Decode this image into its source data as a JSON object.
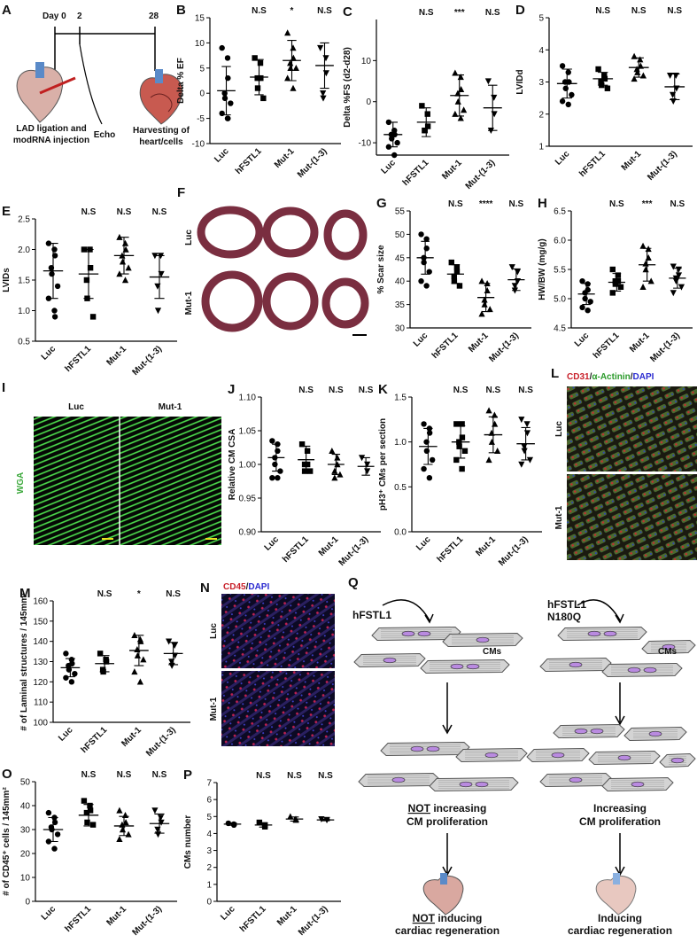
{
  "panel_a": {
    "label": "A",
    "timeline": [
      "Day 0",
      "2",
      "28"
    ],
    "captions": [
      [
        "LAD ligation and",
        "modRNA injection"
      ],
      [
        "Echo"
      ],
      [
        "Harvesting of",
        "heart/cells"
      ]
    ]
  },
  "panel_f": {
    "label": "F",
    "rows": [
      "Luc",
      "Mut-1"
    ]
  },
  "panel_i": {
    "label": "I",
    "stain": "WGA",
    "stain_color": "#3aa83a",
    "columns": [
      "Luc",
      "Mut-1"
    ]
  },
  "panel_l": {
    "label": "L",
    "stain": [
      "CD31",
      "/",
      "α-Actinin",
      "/",
      "DAPI"
    ],
    "stain_colors": [
      "#c8202a",
      "#222222",
      "#2a9a2a",
      "#222222",
      "#2a2ad0"
    ],
    "rows": [
      "Luc",
      "Mut-1"
    ]
  },
  "panel_n": {
    "label": "N",
    "stain": [
      "CD45",
      "/",
      "DAPI"
    ],
    "stain_colors": [
      "#c8202a",
      "#222222",
      "#2a2ad0"
    ],
    "rows": [
      "Luc",
      "Mut-1"
    ]
  },
  "panel_q": {
    "label": "Q",
    "left": {
      "treatment": [
        "hFSTL1"
      ],
      "cells": "CMs",
      "proliferation": [
        [
          "NOT",
          " increasing"
        ],
        [
          "CM proliferation"
        ]
      ],
      "regeneration": [
        [
          "NOT",
          " inducing"
        ],
        [
          "cardiac regeneration"
        ]
      ]
    },
    "right": {
      "treatment": [
        "hFSTL1",
        "N180Q"
      ],
      "cells": "CMs",
      "proliferation": [
        [
          "Increasing"
        ],
        [
          "CM proliferation"
        ]
      ],
      "regeneration": [
        [
          "Inducing"
        ],
        [
          "cardiac regeneration"
        ]
      ]
    }
  },
  "chart_data": [
    {
      "type": "dotplot",
      "label": "B",
      "ylabel": "Delta % EF",
      "categories": [
        "Luc",
        "hFSTL1",
        "Mut-1",
        "Mut-(1-3)"
      ],
      "markers": [
        "circle",
        "square",
        "triangle",
        "triangle-down"
      ],
      "color": "#000000",
      "points": [
        [
          9,
          7,
          3,
          0,
          -1,
          -2,
          -4,
          -5,
          -5
        ],
        [
          7,
          6,
          3,
          3,
          1,
          -1
        ],
        [
          12,
          9,
          7,
          6,
          5,
          5,
          3,
          1
        ],
        [
          9,
          7,
          4,
          0,
          -1
        ]
      ],
      "means": [
        0.5,
        3.2,
        6.5,
        5.5
      ],
      "sds": [
        4.8,
        3.5,
        4,
        4.5
      ],
      "annotations": [
        null,
        "N.S",
        "*",
        "N.S"
      ],
      "ylim": [
        -10,
        15
      ],
      "yticks": [
        -10,
        -5,
        0,
        5,
        10,
        15
      ]
    },
    {
      "type": "dotplot",
      "label": "C",
      "ylabel": "Delta %FS (d2-d28)",
      "categories": [
        "Luc",
        "hFSTL1",
        "Mut-1",
        "Mut-(1-3)"
      ],
      "markers": [
        "circle",
        "square",
        "triangle",
        "triangle-down"
      ],
      "color": "#000000",
      "points": [
        [
          -5,
          -7,
          -8,
          -8,
          -9,
          -10,
          -11,
          -13
        ],
        [
          -1,
          -3,
          -6,
          -7,
          -7
        ],
        [
          7,
          6,
          3,
          2,
          0,
          -2,
          -3,
          -4
        ],
        [
          5,
          1,
          -3,
          -7
        ]
      ],
      "means": [
        -8,
        -5,
        1.5,
        -1.5
      ],
      "sds": [
        3,
        3.5,
        5,
        5.5
      ],
      "annotations": [
        null,
        "N.S",
        "***",
        "N.S"
      ],
      "ylim": [
        -13,
        20
      ],
      "yticks": [
        -10,
        0,
        10
      ]
    },
    {
      "type": "dotplot",
      "label": "D",
      "ylabel": "LVIDd",
      "categories": [
        "Luc",
        "hFSTL1",
        "Mut-1",
        "Mut-(1-3)"
      ],
      "markers": [
        "circle",
        "square",
        "triangle",
        "triangle-down"
      ],
      "color": "#000000",
      "points": [
        [
          3.5,
          3.3,
          3,
          3,
          2.8,
          2.6,
          2.4,
          2.3
        ],
        [
          3.4,
          3.2,
          3.1,
          3,
          2.9,
          2.8
        ],
        [
          3.8,
          3.7,
          3.5,
          3.4,
          3.3,
          3.2,
          3.1
        ],
        [
          3.2,
          3.2,
          2.8,
          2.6,
          2.4
        ]
      ],
      "means": [
        2.95,
        3.1,
        3.45,
        2.85
      ],
      "sds": [
        0.45,
        0.2,
        0.3,
        0.4
      ],
      "annotations": [
        null,
        "N.S",
        "N.S",
        "N.S"
      ],
      "ylim": [
        1,
        5
      ],
      "yticks": [
        1,
        2,
        3,
        4,
        5
      ]
    },
    {
      "type": "dotplot",
      "label": "E",
      "ylabel": "LVIDs",
      "categories": [
        "Luc",
        "hFSTL1",
        "Mut-1",
        "Mut-(1-3)"
      ],
      "markers": [
        "circle",
        "square",
        "triangle",
        "triangle-down"
      ],
      "color": "#000000",
      "points": [
        [
          2.1,
          2,
          1.9,
          1.7,
          1.6,
          1.4,
          1.2,
          1,
          0.9
        ],
        [
          2,
          2,
          1.7,
          1.5,
          1.2,
          0.9
        ],
        [
          2.2,
          2.1,
          2,
          1.9,
          1.8,
          1.7,
          1.6,
          1.5
        ],
        [
          1.9,
          1.9,
          1.6,
          1.4,
          1
        ]
      ],
      "means": [
        1.65,
        1.6,
        1.9,
        1.55
      ],
      "sds": [
        0.45,
        0.4,
        0.3,
        0.35
      ],
      "annotations": [
        null,
        "N.S",
        "N.S",
        "N.S"
      ],
      "ylim": [
        0.5,
        2.5
      ],
      "yticks": [
        0.5,
        {
          "value": 1,
          "label": "1.0"
        },
        1.5,
        {
          "value": 2,
          "label": "2.0"
        },
        2.5
      ]
    },
    {
      "type": "dotplot",
      "label": "G",
      "ylabel": "% Scar size",
      "categories": [
        "Luc",
        "hFSTL1",
        "Mut-1",
        "Mut-(1-3)"
      ],
      "markers": [
        "circle",
        "square",
        "triangle",
        "triangle-down"
      ],
      "color": "#000000",
      "points": [
        [
          50,
          49,
          47,
          45,
          44,
          42,
          40,
          39
        ],
        [
          44,
          43,
          42,
          41,
          40,
          39
        ],
        [
          40,
          39.5,
          38,
          36,
          35,
          34,
          33
        ],
        [
          43,
          42,
          40,
          39,
          38
        ]
      ],
      "means": [
        45,
        41.5,
        36.5,
        40.3
      ],
      "sds": [
        3.5,
        2,
        3,
        2.3
      ],
      "annotations": [
        null,
        "N.S",
        "****",
        "N.S"
      ],
      "ylim": [
        30,
        55
      ],
      "yticks": [
        30,
        35,
        40,
        45,
        50,
        55
      ]
    },
    {
      "type": "dotplot",
      "label": "H",
      "ylabel": "HW/BW (mg/g)",
      "categories": [
        "Luc",
        "hFSTL1",
        "Mut-1",
        "Mut-(1-3)"
      ],
      "markers": [
        "circle",
        "square",
        "triangle",
        "triangle-down"
      ],
      "color": "#000000",
      "points": [
        [
          5.3,
          5.25,
          5.15,
          5.1,
          5,
          4.95,
          4.85,
          4.8
        ],
        [
          5.5,
          5.4,
          5.3,
          5.3,
          5.25,
          5.2,
          5.1
        ],
        [
          5.9,
          5.85,
          5.7,
          5.6,
          5.5,
          5.3,
          5.2
        ],
        [
          5.55,
          5.5,
          5.4,
          5.35,
          5.3,
          5.2,
          5.1
        ]
      ],
      "means": [
        5.08,
        5.28,
        5.58,
        5.35
      ],
      "sds": [
        0.18,
        0.15,
        0.28,
        0.17
      ],
      "annotations": [
        null,
        "N.S",
        "***",
        "N.S"
      ],
      "ylim": [
        4.5,
        6.5
      ],
      "yticks": [
        4.5,
        {
          "value": 5,
          "label": "5.0"
        },
        5.5,
        {
          "value": 6,
          "label": "6.0"
        },
        6.5
      ]
    },
    {
      "type": "dotplot",
      "label": "J",
      "ylabel": "Relative CM CSA",
      "categories": [
        "Luc",
        "hFSTL1",
        "Mut-1",
        "Mut-(1-3)"
      ],
      "markers": [
        "circle",
        "square",
        "triangle",
        "triangle-down"
      ],
      "color": "#000000",
      "points": [
        [
          1.035,
          1.03,
          1.02,
          1.01,
          1,
          0.99,
          0.98,
          0.98
        ],
        [
          1.03,
          1.02,
          1,
          1,
          0.99,
          0.99
        ],
        [
          1.02,
          1.01,
          1,
          0.99,
          0.98,
          0.985
        ],
        [
          1.01,
          1,
          0.99
        ]
      ],
      "means": [
        1.01,
        1.007,
        1,
        0.997
      ],
      "sds": [
        0.02,
        0.02,
        0.015,
        0.013
      ],
      "annotations": [
        null,
        "N.S",
        "N.S",
        "N.S"
      ],
      "ylim": [
        0.9,
        1.1
      ],
      "yticks": [
        {
          "value": 0.9,
          "label": "0.90"
        },
        0.95,
        {
          "value": 1,
          "label": "1.00"
        },
        1.05,
        {
          "value": 1.1,
          "label": "1.10"
        }
      ]
    },
    {
      "type": "dotplot",
      "label": "K",
      "ylabel": "pH3⁺ CMs per section",
      "categories": [
        "Luc",
        "hFSTL1",
        "Mut-1",
        "Mut-(1-3)"
      ],
      "markers": [
        "circle",
        "square",
        "triangle",
        "triangle-down"
      ],
      "color": "#000000",
      "points": [
        [
          1.2,
          1.15,
          1.1,
          1,
          0.9,
          0.8,
          0.7,
          0.6
        ],
        [
          1.2,
          1.2,
          1.05,
          1,
          0.95,
          0.9,
          0.8,
          0.7
        ],
        [
          1.35,
          1.3,
          1.2,
          1.1,
          1,
          0.9,
          0.8
        ],
        [
          1.25,
          1.2,
          1.1,
          0.95,
          0.9,
          0.8,
          0.75
        ]
      ],
      "means": [
        0.95,
        1,
        1.08,
        0.98
      ],
      "sds": [
        0.2,
        0.18,
        0.2,
        0.18
      ],
      "annotations": [
        null,
        "N.S",
        "N.S",
        "N.S"
      ],
      "ylim": [
        0,
        1.5
      ],
      "yticks": [
        {
          "value": 0,
          "label": "0.0"
        },
        0.5,
        {
          "value": 1,
          "label": "1.0"
        },
        1.5
      ]
    },
    {
      "type": "dotplot",
      "label": "M",
      "ylabel": "# of Laminal structures / 145mm²",
      "categories": [
        "Luc",
        "hFSTL1",
        "Mut-1",
        "Mut-(1-3)"
      ],
      "markers": [
        "circle",
        "square",
        "triangle",
        "triangle-down"
      ],
      "color": "#000000",
      "points": [
        [
          134,
          131,
          129,
          128,
          126,
          124,
          122,
          120
        ],
        [
          134,
          131,
          130,
          126,
          125
        ],
        [
          143,
          141,
          140,
          136,
          133,
          131,
          125,
          120
        ],
        [
          140,
          138,
          133,
          130,
          128
        ]
      ],
      "means": [
        127,
        129,
        135.5,
        134
      ],
      "sds": [
        4.5,
        4,
        7.5,
        5.5
      ],
      "annotations": [
        null,
        "N.S",
        "*",
        "N.S"
      ],
      "ylim": [
        100,
        160
      ],
      "yticks": [
        100,
        110,
        120,
        130,
        140,
        150,
        160
      ]
    },
    {
      "type": "dotplot",
      "label": "O",
      "ylabel": "# of CD45⁺ cells / 145mm²",
      "categories": [
        "Luc",
        "hFSTL1",
        "Mut-1",
        "Mut-(1-3)"
      ],
      "markers": [
        "circle",
        "square",
        "triangle",
        "triangle-down"
      ],
      "color": "#000000",
      "points": [
        [
          37,
          35,
          33,
          31,
          30,
          28,
          25,
          22
        ],
        [
          42,
          40,
          38,
          37,
          33,
          32
        ],
        [
          38,
          36,
          33,
          32,
          30,
          28,
          26
        ],
        [
          38,
          35,
          33,
          30,
          28
        ]
      ],
      "means": [
        30,
        36,
        31.5,
        32.5
      ],
      "sds": [
        5,
        4.5,
        4,
        4
      ],
      "annotations": [
        null,
        "N.S",
        "N.S",
        "N.S"
      ],
      "ylim": [
        0,
        50
      ],
      "yticks": [
        0,
        10,
        20,
        30,
        40,
        50
      ]
    },
    {
      "type": "dotplot",
      "label": "P",
      "ylabel": "CMs number",
      "categories": [
        "Luc",
        "hFSTL1",
        "Mut-1",
        "Mut-(1-3)"
      ],
      "markers": [
        "circle",
        "square",
        "triangle",
        "triangle-down"
      ],
      "color": "#000000",
      "points": [
        [
          4.6,
          4.55,
          4.5
        ],
        [
          4.65,
          4.5,
          4.4
        ],
        [
          5,
          4.85,
          4.8
        ],
        [
          4.85,
          4.8,
          4.8
        ]
      ],
      "means": [
        4.55,
        4.5,
        4.85,
        4.8
      ],
      "sds": [
        0.07,
        0.12,
        0.12,
        0.05
      ],
      "annotations": [
        null,
        "N.S",
        "N.S",
        "N.S"
      ],
      "ylim": [
        0,
        7
      ],
      "yticks": [
        0,
        1,
        2,
        3,
        4,
        5,
        6,
        7
      ]
    }
  ]
}
